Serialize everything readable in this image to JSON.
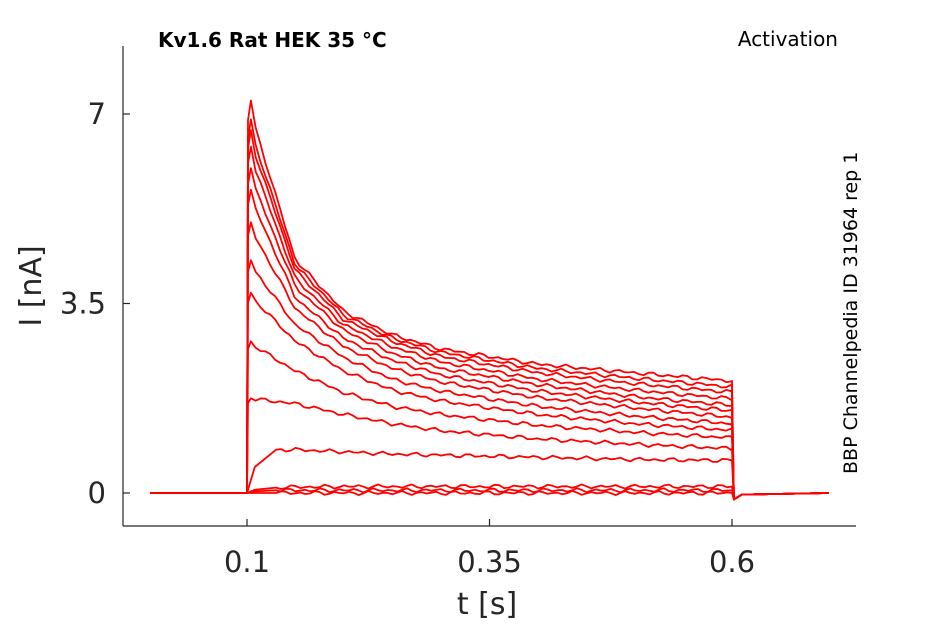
{
  "chart_data": {
    "type": "line",
    "title": "Kv1.6  Rat  HEK  35 °C",
    "protocol_label": "Activation",
    "side_label": "BBP Channelpedia ID 31964 rep 1",
    "xlabel": "t [s]",
    "ylabel": "I [nA]",
    "xlim": [
      0.0,
      0.75
    ],
    "ylim": [
      -0.6,
      8.2
    ],
    "x_ticks": [
      0.1,
      0.35,
      0.6
    ],
    "x_tick_labels": [
      "0.1",
      "0.35",
      "0.6"
    ],
    "y_ticks": [
      0,
      3.5,
      7
    ],
    "y_tick_labels": [
      "0",
      "3.5",
      "7"
    ],
    "grid": false,
    "line_color": "#ff0000",
    "stimulus_on": 0.1,
    "stimulus_off": 0.6,
    "series_x": [
      0.1,
      0.15,
      0.2,
      0.25,
      0.3,
      0.4,
      0.5,
      0.6
    ],
    "series": [
      {
        "values": [
          0.0,
          0.0,
          0.0,
          0.0,
          0.0,
          0.0,
          0.0,
          0.0
        ]
      },
      {
        "values": [
          0.05,
          0.05,
          0.05,
          0.05,
          0.05,
          0.05,
          0.05,
          0.05
        ]
      },
      {
        "values": [
          0.1,
          0.11,
          0.12,
          0.12,
          0.12,
          0.12,
          0.12,
          0.12
        ]
      },
      {
        "values": [
          0.8,
          0.8,
          0.76,
          0.72,
          0.7,
          0.66,
          0.62,
          0.6
        ]
      },
      {
        "values": [
          1.75,
          1.65,
          1.45,
          1.28,
          1.15,
          1.0,
          0.9,
          0.82
        ]
      },
      {
        "values": [
          2.8,
          2.25,
          1.85,
          1.6,
          1.45,
          1.25,
          1.12,
          1.02
        ]
      },
      {
        "values": [
          3.7,
          2.8,
          2.25,
          1.9,
          1.7,
          1.45,
          1.28,
          1.16
        ]
      },
      {
        "values": [
          4.3,
          3.1,
          2.5,
          2.1,
          1.88,
          1.6,
          1.42,
          1.28
        ]
      },
      {
        "values": [
          5.0,
          3.4,
          2.7,
          2.3,
          2.05,
          1.76,
          1.57,
          1.4
        ]
      },
      {
        "values": [
          5.6,
          3.6,
          2.85,
          2.45,
          2.18,
          1.88,
          1.68,
          1.52
        ]
      },
      {
        "values": [
          6.0,
          3.8,
          3.0,
          2.58,
          2.3,
          2.0,
          1.78,
          1.62
        ]
      },
      {
        "values": [
          6.4,
          3.95,
          3.1,
          2.7,
          2.42,
          2.1,
          1.9,
          1.74
        ]
      },
      {
        "values": [
          6.7,
          4.1,
          3.2,
          2.8,
          2.52,
          2.22,
          2.02,
          1.86
        ]
      },
      {
        "values": [
          6.9,
          4.2,
          3.28,
          2.86,
          2.6,
          2.3,
          2.12,
          1.96
        ]
      },
      {
        "values": [
          7.25,
          4.3,
          3.35,
          2.92,
          2.66,
          2.38,
          2.22,
          2.07
        ]
      }
    ]
  }
}
